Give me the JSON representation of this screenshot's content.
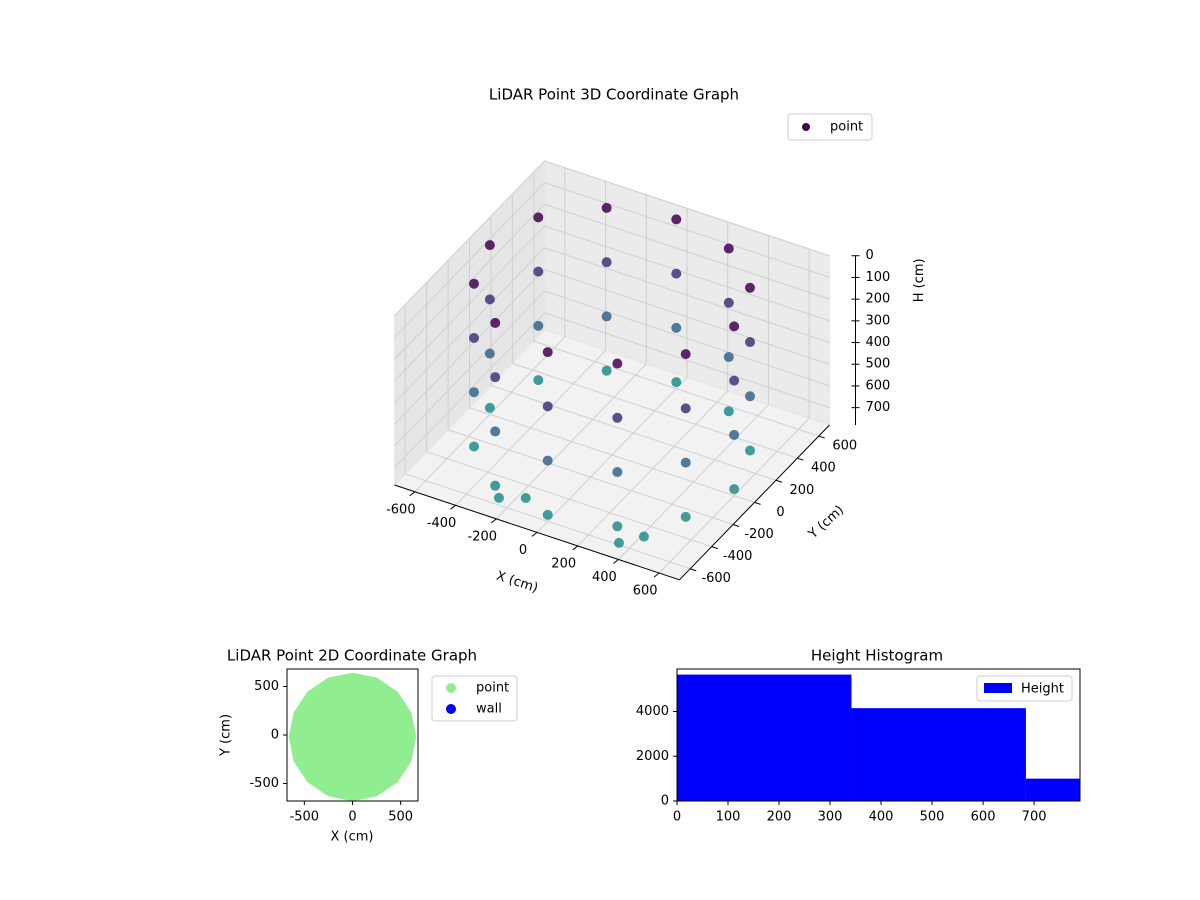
{
  "chart_data": [
    {
      "type": "scatter3d",
      "title": "LiDAR Point 3D Coordinate Graph",
      "x_label": "X (cm)",
      "y_label": "Y (cm)",
      "z_label": "H (cm)",
      "xlim": [
        -700,
        700
      ],
      "ylim": [
        -700,
        700
      ],
      "zlim": [
        0,
        780
      ],
      "z_inverted": true,
      "xticks": [
        -600,
        -400,
        -200,
        0,
        200,
        400,
        600
      ],
      "yticks": [
        -600,
        -400,
        -200,
        0,
        200,
        400,
        600
      ],
      "zticks": [
        0,
        100,
        200,
        300,
        400,
        500,
        600,
        700
      ],
      "legend": "upper right",
      "grid": true,
      "colormap": [
        "#440154",
        "#3b528b",
        "#21918c"
      ],
      "series": [
        {
          "name": "point",
          "color": "#440154",
          "x": [
            600,
            520,
            300,
            0,
            -300,
            -520,
            -600,
            -520,
            -300,
            0,
            300,
            520,
            600,
            520,
            300,
            0,
            -300,
            -520,
            -600,
            -520,
            -300,
            0,
            300,
            520,
            600,
            520,
            300,
            0,
            -300,
            -520,
            -600,
            -520,
            -300,
            0,
            300,
            520,
            600,
            520,
            300,
            0,
            -300,
            -520,
            -600,
            -520,
            -300,
            0,
            300,
            520,
            -250,
            -150,
            350,
            420
          ],
          "y": [
            0,
            300,
            520,
            600,
            520,
            300,
            0,
            -300,
            -520,
            -600,
            -520,
            -300,
            0,
            300,
            520,
            600,
            520,
            300,
            0,
            -300,
            -520,
            -600,
            -520,
            -300,
            0,
            300,
            520,
            600,
            520,
            300,
            0,
            -300,
            -520,
            -600,
            -520,
            -300,
            0,
            300,
            520,
            600,
            520,
            300,
            0,
            -300,
            -520,
            -600,
            -520,
            -300,
            -580,
            -520,
            -600,
            -500
          ],
          "h": [
            0,
            0,
            0,
            0,
            0,
            0,
            0,
            0,
            0,
            0,
            0,
            0,
            250,
            250,
            250,
            250,
            250,
            250,
            250,
            250,
            250,
            250,
            250,
            250,
            500,
            500,
            500,
            500,
            500,
            500,
            500,
            500,
            500,
            500,
            500,
            500,
            750,
            750,
            750,
            750,
            750,
            750,
            750,
            750,
            750,
            750,
            750,
            750,
            760,
            760,
            770,
            770
          ]
        }
      ]
    },
    {
      "type": "scatter",
      "title": "LiDAR Point 2D Coordinate Graph",
      "x_label": "X (cm)",
      "y_label": "Y (cm)",
      "xlim": [
        -680,
        680
      ],
      "ylim": [
        -680,
        680
      ],
      "xticks": [
        -500,
        0,
        500
      ],
      "yticks": [
        -500,
        0,
        500
      ],
      "legend": "outside right",
      "series": [
        {
          "name": "point",
          "color": "#90ee90",
          "x": [
            630,
            582,
            445,
            241,
            0,
            -241,
            -445,
            -582,
            -630,
            -582,
            -445,
            -241,
            0,
            241,
            445,
            582
          ],
          "y": [
            -20,
            221,
            425,
            562,
            610,
            562,
            425,
            221,
            -20,
            -261,
            -465,
            -602,
            -650,
            -602,
            -465,
            -261
          ]
        },
        {
          "name": "wall",
          "color": "#0000ff",
          "x": [],
          "y": []
        }
      ]
    },
    {
      "type": "histogram",
      "title": "Height Histogram",
      "bins": [
        0,
        342,
        684,
        1026
      ],
      "values": [
        5650,
        4150,
        1000
      ],
      "series_name": "Height",
      "color": "#0000ff",
      "xlim": [
        0,
        790
      ],
      "ylim": [
        0,
        5900
      ],
      "xticks": [
        0,
        100,
        200,
        300,
        400,
        500,
        600,
        700
      ],
      "yticks": [
        0,
        2000,
        4000
      ],
      "legend": "upper right"
    }
  ]
}
